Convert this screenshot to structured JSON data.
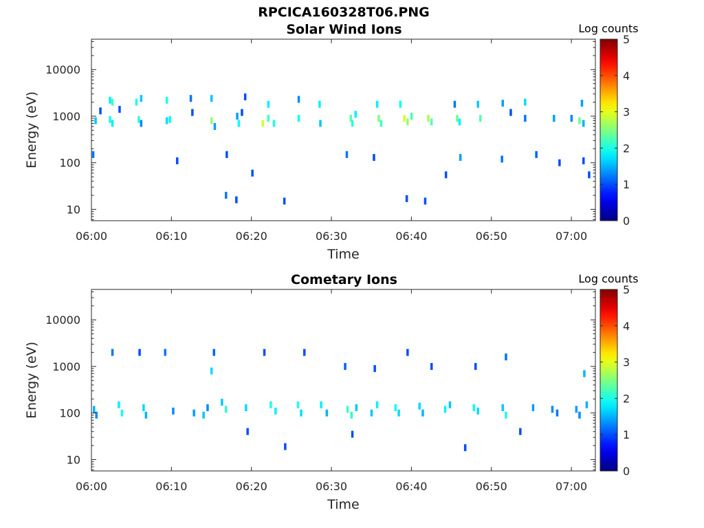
{
  "figure_title": "RPCICA160328T06.PNG",
  "chart_data": [
    {
      "type": "heatmap",
      "title": "Solar Wind Ions",
      "xlabel": "Time",
      "ylabel": "Energy (eV)",
      "x_ticks": [
        "06:00",
        "06:10",
        "06:20",
        "06:30",
        "06:40",
        "06:50",
        "07:00"
      ],
      "x_range_minutes": [
        0,
        63
      ],
      "y_scale": "log",
      "y_ticks": [
        "10",
        "100",
        "1000",
        "10000"
      ],
      "y_range": [
        5.7,
        45000
      ],
      "colorbar": {
        "label": "Log counts",
        "ticks": [
          "0",
          "1",
          "2",
          "3",
          "4",
          "5"
        ],
        "range": [
          0,
          5
        ],
        "colormap": "jet"
      },
      "cells": [
        [
          0.2,
          150,
          1.2
        ],
        [
          0.5,
          800,
          1.6
        ],
        [
          1.1,
          1300,
          1.0
        ],
        [
          2.3,
          2200,
          1.8
        ],
        [
          2.3,
          850,
          2.0
        ],
        [
          2.6,
          2000,
          2.2
        ],
        [
          2.6,
          700,
          1.8
        ],
        [
          3.5,
          1400,
          1.0
        ],
        [
          5.6,
          2000,
          2.0
        ],
        [
          5.9,
          850,
          2.1
        ],
        [
          6.2,
          2400,
          1.6
        ],
        [
          6.2,
          700,
          1.3
        ],
        [
          9.4,
          2200,
          2.0
        ],
        [
          9.4,
          800,
          1.7
        ],
        [
          9.8,
          850,
          1.9
        ],
        [
          12.4,
          2400,
          1.2
        ],
        [
          12.6,
          1200,
          1.0
        ],
        [
          15.0,
          2400,
          1.6
        ],
        [
          15.0,
          800,
          2.6
        ],
        [
          15.4,
          600,
          1.4
        ],
        [
          18.2,
          1000,
          1.4
        ],
        [
          18.4,
          700,
          1.9
        ],
        [
          18.8,
          1200,
          1.0
        ],
        [
          19.2,
          2600,
          1.0
        ],
        [
          21.4,
          700,
          2.9
        ],
        [
          22.1,
          1800,
          1.8
        ],
        [
          22.1,
          900,
          2.2
        ],
        [
          22.8,
          700,
          2.0
        ],
        [
          25.9,
          2300,
          1.3
        ],
        [
          25.9,
          900,
          1.9
        ],
        [
          28.5,
          1800,
          1.8
        ],
        [
          28.6,
          700,
          1.6
        ],
        [
          32.4,
          900,
          2.3
        ],
        [
          32.6,
          700,
          2.1
        ],
        [
          33.0,
          1100,
          1.8
        ],
        [
          35.7,
          1800,
          1.8
        ],
        [
          35.9,
          900,
          2.5
        ],
        [
          36.2,
          700,
          2.2
        ],
        [
          38.6,
          1800,
          1.9
        ],
        [
          39.1,
          900,
          2.9
        ],
        [
          39.5,
          750,
          2.6
        ],
        [
          40.0,
          1000,
          2.2
        ],
        [
          42.1,
          900,
          2.7
        ],
        [
          42.5,
          750,
          2.3
        ],
        [
          45.4,
          1800,
          1.2
        ],
        [
          45.7,
          900,
          2.4
        ],
        [
          46.0,
          750,
          1.8
        ],
        [
          48.3,
          1800,
          1.6
        ],
        [
          48.6,
          900,
          2.3
        ],
        [
          51.4,
          1900,
          1.4
        ],
        [
          52.4,
          1200,
          1.0
        ],
        [
          54.2,
          2000,
          1.7
        ],
        [
          54.2,
          900,
          1.2
        ],
        [
          57.8,
          900,
          1.4
        ],
        [
          60.0,
          900,
          1.3
        ],
        [
          61.0,
          800,
          2.4
        ],
        [
          61.3,
          1900,
          1.4
        ],
        [
          61.5,
          700,
          1.5
        ],
        [
          10.7,
          110,
          1.0
        ],
        [
          16.9,
          150,
          1.0
        ],
        [
          16.8,
          20,
          1.2
        ],
        [
          18.1,
          16,
          1.0
        ],
        [
          20.1,
          60,
          1.0
        ],
        [
          24.1,
          15,
          1.0
        ],
        [
          31.9,
          150,
          1.2
        ],
        [
          35.3,
          130,
          1.0
        ],
        [
          39.4,
          17,
          1.0
        ],
        [
          41.7,
          15,
          1.0
        ],
        [
          44.3,
          55,
          1.0
        ],
        [
          46.1,
          130,
          1.4
        ],
        [
          51.3,
          120,
          1.2
        ],
        [
          55.6,
          150,
          1.1
        ],
        [
          58.5,
          100,
          1.0
        ],
        [
          61.5,
          110,
          1.0
        ],
        [
          62.2,
          55,
          1.0
        ]
      ]
    },
    {
      "type": "heatmap",
      "title": "Cometary Ions",
      "xlabel": "Time",
      "ylabel": "Energy (eV)",
      "x_ticks": [
        "06:00",
        "06:10",
        "06:20",
        "06:30",
        "06:40",
        "06:50",
        "07:00"
      ],
      "x_range_minutes": [
        0,
        63
      ],
      "y_scale": "log",
      "y_ticks": [
        "10",
        "100",
        "1000",
        "10000"
      ],
      "y_range": [
        5.7,
        45000
      ],
      "colorbar": {
        "label": "Log counts",
        "ticks": [
          "0",
          "1",
          "2",
          "3",
          "4",
          "5"
        ],
        "range": [
          0,
          5
        ],
        "colormap": "jet"
      },
      "cells": [
        [
          0.3,
          120,
          1.5
        ],
        [
          0.6,
          90,
          1.3
        ],
        [
          3.4,
          150,
          1.8
        ],
        [
          3.8,
          100,
          2.0
        ],
        [
          6.5,
          130,
          1.7
        ],
        [
          6.8,
          90,
          1.5
        ],
        [
          10.2,
          110,
          1.3
        ],
        [
          12.8,
          100,
          1.4
        ],
        [
          14.0,
          90,
          1.6
        ],
        [
          14.5,
          130,
          1.3
        ],
        [
          16.3,
          170,
          1.6
        ],
        [
          16.8,
          120,
          2.1
        ],
        [
          19.3,
          130,
          1.7
        ],
        [
          22.4,
          150,
          2.0
        ],
        [
          23.0,
          110,
          1.8
        ],
        [
          25.8,
          150,
          2.0
        ],
        [
          26.2,
          100,
          1.7
        ],
        [
          28.7,
          150,
          1.8
        ],
        [
          29.4,
          100,
          1.5
        ],
        [
          32.0,
          120,
          2.2
        ],
        [
          32.5,
          90,
          2.1
        ],
        [
          33.1,
          130,
          1.6
        ],
        [
          35.0,
          100,
          1.6
        ],
        [
          35.7,
          150,
          1.8
        ],
        [
          38.0,
          130,
          1.9
        ],
        [
          38.4,
          100,
          1.7
        ],
        [
          41.0,
          140,
          1.7
        ],
        [
          41.4,
          100,
          1.5
        ],
        [
          44.2,
          120,
          1.8
        ],
        [
          44.8,
          150,
          1.6
        ],
        [
          47.8,
          130,
          1.9
        ],
        [
          48.3,
          110,
          1.7
        ],
        [
          51.4,
          130,
          1.6
        ],
        [
          51.8,
          90,
          2.0
        ],
        [
          55.2,
          130,
          1.4
        ],
        [
          57.6,
          120,
          1.3
        ],
        [
          58.2,
          100,
          1.2
        ],
        [
          60.6,
          120,
          1.4
        ],
        [
          61.0,
          90,
          1.3
        ],
        [
          61.9,
          150,
          1.5
        ],
        [
          2.6,
          2000,
          1.2
        ],
        [
          6.0,
          2000,
          1.0
        ],
        [
          9.2,
          2000,
          1.2
        ],
        [
          15.3,
          2000,
          1.1
        ],
        [
          15.0,
          800,
          1.7
        ],
        [
          21.6,
          2000,
          1.0
        ],
        [
          26.6,
          2000,
          1.0
        ],
        [
          31.7,
          1000,
          1.1
        ],
        [
          35.4,
          900,
          1.0
        ],
        [
          39.5,
          2000,
          1.0
        ],
        [
          42.5,
          1000,
          1.0
        ],
        [
          48.0,
          1000,
          1.0
        ],
        [
          51.8,
          1600,
          1.2
        ],
        [
          61.6,
          700,
          1.5
        ],
        [
          24.2,
          19,
          1.0
        ],
        [
          46.7,
          18,
          1.0
        ],
        [
          19.5,
          40,
          1.0
        ],
        [
          32.6,
          35,
          1.0
        ],
        [
          53.6,
          40,
          1.0
        ]
      ]
    }
  ]
}
